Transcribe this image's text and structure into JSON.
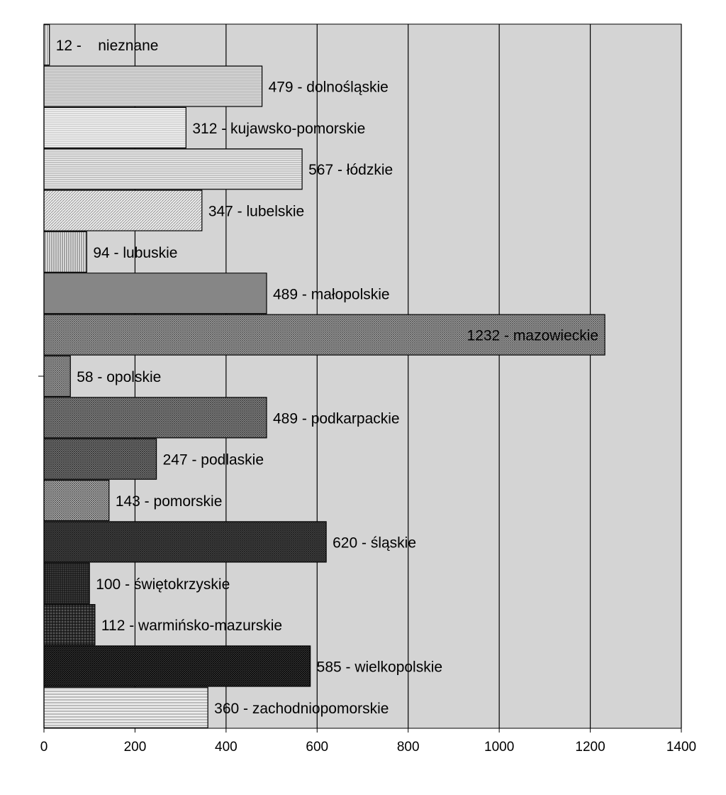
{
  "chart_data": {
    "type": "bar",
    "orientation": "horizontal",
    "title": "",
    "xlabel": "",
    "ylabel": "",
    "xlim": [
      0,
      1400
    ],
    "xticks": [
      0,
      200,
      400,
      600,
      800,
      1000,
      1200,
      1400
    ],
    "xtick_labels": [
      "0",
      "200",
      "400",
      "600",
      "800",
      "1000",
      "1200",
      "1400"
    ],
    "grid": "vertical",
    "plot_background": "#d4d4d4",
    "bar_border": "#000000",
    "categories": [
      "nieznane",
      "dolnośląskie",
      "kujawsko-pomorskie",
      "łódzkie",
      "lubelskie",
      "lubuskie",
      "małopolskie",
      "mazowieckie",
      "opolskie",
      "podkarpackie",
      "podlaskie",
      "pomorskie",
      "śląskie",
      "świętokrzyskie",
      "warmińsko-mazurskie",
      "wielkopolskie",
      "zachodniopomorskie"
    ],
    "values": [
      12,
      479,
      312,
      567,
      347,
      94,
      489,
      1232,
      58,
      489,
      247,
      143,
      620,
      100,
      112,
      585,
      360
    ],
    "data_labels": [
      "12 -    nieznane",
      "479 - dolnośląskie",
      "312 - kujawsko-pomorskie",
      "567 - łódzkie",
      "347 - lubelskie",
      "94 - lubuskie",
      "489 - małopolskie",
      "1232 - mazowieckie",
      "58 - opolskie",
      "489 - podkarpackie",
      "247 - podlaskie",
      "143 - pomorskie",
      "620 - śląskie",
      "100 - świętokrzyskie",
      "112 - warmińsko-mazurskie",
      "585 - wielkopolskie",
      "360 - zachodniopomorskie"
    ],
    "patterns": [
      "vlines-light",
      "dots-light",
      "hlines-fine",
      "hlines-light",
      "diag-fine",
      "vlines",
      "hlines-dense",
      "cross-medium",
      "cross-medium",
      "dots-medium",
      "cross-dense",
      "cross-fine",
      "cross-dark",
      "grid-dark",
      "grid-dark2",
      "diag-dark",
      "hlines-wide"
    ]
  }
}
